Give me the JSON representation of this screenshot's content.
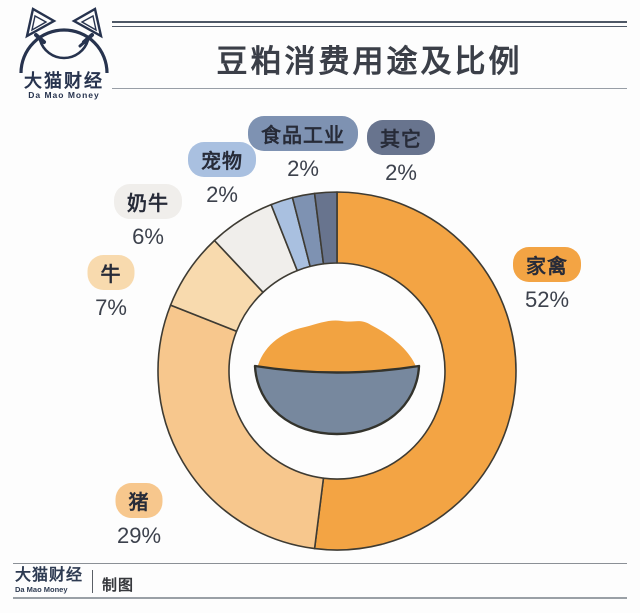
{
  "logo": {
    "name": "大猫财经",
    "name_en": "Da Mao Money"
  },
  "header": {
    "title": "豆粕消费用途及比例"
  },
  "footer": {
    "brand": "大猫财经",
    "brand_en": "Da Mao Money",
    "credit": "制图"
  },
  "chart_data": {
    "type": "pie",
    "subtype": "donut",
    "title": "豆粕消费用途及比例",
    "unit": "%",
    "direction": "clockwise",
    "start_angle_deg": 0,
    "categories": [
      "家禽",
      "猪",
      "牛",
      "奶牛",
      "宠物",
      "食品工业",
      "其它"
    ],
    "values": [
      52,
      29,
      7,
      6,
      2,
      2,
      2
    ],
    "colors": [
      "#F3A444",
      "#F7C78D",
      "#F8DAAE",
      "#F0EEEB",
      "#A9C0E0",
      "#7E92B2",
      "#68748E"
    ],
    "outline_color": "#3E3B33",
    "labels": [
      {
        "name": "家禽",
        "percent": "52%"
      },
      {
        "name": "猪",
        "percent": "29%"
      },
      {
        "name": "牛",
        "percent": "7%"
      },
      {
        "name": "奶牛",
        "percent": "6%"
      },
      {
        "name": "宠物",
        "percent": "2%"
      },
      {
        "name": "食品工业",
        "percent": "2%"
      },
      {
        "name": "其它",
        "percent": "2%"
      }
    ],
    "center_illustration": {
      "name": "bowl-of-soybean-meal",
      "bowl_color": "#77889E",
      "meal_color": "#F2A341",
      "outline_color": "#33332C"
    }
  }
}
